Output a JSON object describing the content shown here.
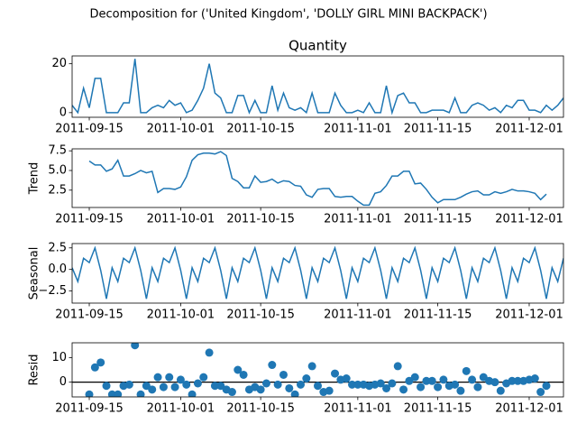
{
  "title": "Decomposition for ('United Kingdom', 'DOLLY GIRL MINI BACKPACK')",
  "chart_data": [
    {
      "type": "line",
      "title": "Quantity",
      "color": "#1f77b4",
      "x": [
        "2011-09-12",
        "2011-09-13",
        "2011-09-14",
        "2011-09-15",
        "2011-09-16",
        "2011-09-17",
        "2011-09-18",
        "2011-09-19",
        "2011-09-20",
        "2011-09-21",
        "2011-09-22",
        "2011-09-23",
        "2011-09-24",
        "2011-09-25",
        "2011-09-26",
        "2011-09-27",
        "2011-09-28",
        "2011-09-29",
        "2011-09-30",
        "2011-10-01",
        "2011-10-02",
        "2011-10-03",
        "2011-10-04",
        "2011-10-05",
        "2011-10-06",
        "2011-10-07",
        "2011-10-08",
        "2011-10-09",
        "2011-10-10",
        "2011-10-11",
        "2011-10-12",
        "2011-10-13",
        "2011-10-14",
        "2011-10-15",
        "2011-10-16",
        "2011-10-17",
        "2011-10-18",
        "2011-10-19",
        "2011-10-20",
        "2011-10-21",
        "2011-10-22",
        "2011-10-23",
        "2011-10-24",
        "2011-10-25",
        "2011-10-26",
        "2011-10-27",
        "2011-10-28",
        "2011-10-29",
        "2011-10-30",
        "2011-10-31",
        "2011-11-01",
        "2011-11-02",
        "2011-11-03",
        "2011-11-04",
        "2011-11-05",
        "2011-11-06",
        "2011-11-07",
        "2011-11-08",
        "2011-11-09",
        "2011-11-10",
        "2011-11-11",
        "2011-11-12",
        "2011-11-13",
        "2011-11-14",
        "2011-11-15",
        "2011-11-16",
        "2011-11-17",
        "2011-11-18",
        "2011-11-19",
        "2011-11-20",
        "2011-11-21",
        "2011-11-22",
        "2011-11-23",
        "2011-11-24",
        "2011-11-25",
        "2011-11-26",
        "2011-11-27",
        "2011-11-28",
        "2011-11-29",
        "2011-11-30",
        "2011-12-01",
        "2011-12-02",
        "2011-12-03",
        "2011-12-04",
        "2011-12-05",
        "2011-12-06",
        "2011-12-07"
      ],
      "values": [
        3,
        0,
        10,
        2,
        14,
        14,
        0,
        0,
        0,
        4,
        4,
        22,
        0,
        0,
        2,
        3,
        2,
        5,
        3,
        4,
        0,
        1,
        5,
        10,
        20,
        8,
        6,
        0,
        0,
        7,
        7,
        0,
        5,
        0,
        0,
        11,
        1,
        8,
        2,
        1,
        2,
        0,
        8,
        0,
        0,
        0,
        8,
        3,
        0,
        0,
        1,
        0,
        4,
        0,
        0,
        11,
        0,
        7,
        8,
        4,
        4,
        0,
        0,
        1,
        1,
        1,
        0,
        6,
        0,
        0,
        3,
        4,
        3,
        1,
        2,
        0,
        3,
        2,
        5,
        5,
        1,
        1,
        0,
        3,
        1,
        3,
        6
      ],
      "xlim": [
        "2011-09-12",
        "2011-12-07"
      ],
      "xticks": [
        "2011-09-15",
        "2011-10-01",
        "2011-10-15",
        "2011-11-01",
        "2011-11-15",
        "2011-12-01"
      ],
      "ylim": [
        -1.9,
        23.2
      ],
      "yticks": [
        0,
        20
      ]
    },
    {
      "type": "line",
      "ylabel": "Trend",
      "color": "#1f77b4",
      "x": [
        "2011-09-12",
        "2011-09-13",
        "2011-09-14",
        "2011-09-15",
        "2011-09-16",
        "2011-09-17",
        "2011-09-18",
        "2011-09-19",
        "2011-09-20",
        "2011-09-21",
        "2011-09-22",
        "2011-09-23",
        "2011-09-24",
        "2011-09-25",
        "2011-09-26",
        "2011-09-27",
        "2011-09-28",
        "2011-09-29",
        "2011-09-30",
        "2011-10-01",
        "2011-10-02",
        "2011-10-03",
        "2011-10-04",
        "2011-10-05",
        "2011-10-06",
        "2011-10-07",
        "2011-10-08",
        "2011-10-09",
        "2011-10-10",
        "2011-10-11",
        "2011-10-12",
        "2011-10-13",
        "2011-10-14",
        "2011-10-15",
        "2011-10-16",
        "2011-10-17",
        "2011-10-18",
        "2011-10-19",
        "2011-10-20",
        "2011-10-21",
        "2011-10-22",
        "2011-10-23",
        "2011-10-24",
        "2011-10-25",
        "2011-10-26",
        "2011-10-27",
        "2011-10-28",
        "2011-10-29",
        "2011-10-30",
        "2011-10-31",
        "2011-11-01",
        "2011-11-02",
        "2011-11-03",
        "2011-11-04",
        "2011-11-05",
        "2011-11-06",
        "2011-11-07",
        "2011-11-08",
        "2011-11-09",
        "2011-11-10",
        "2011-11-11",
        "2011-11-12",
        "2011-11-13",
        "2011-11-14",
        "2011-11-15",
        "2011-11-16",
        "2011-11-17",
        "2011-11-18",
        "2011-11-19",
        "2011-11-20",
        "2011-11-21",
        "2011-11-22",
        "2011-11-23",
        "2011-11-24",
        "2011-11-25",
        "2011-11-26",
        "2011-11-27",
        "2011-11-28",
        "2011-11-29",
        "2011-11-30",
        "2011-12-01",
        "2011-12-02",
        "2011-12-03",
        "2011-12-04",
        "2011-12-05",
        "2011-12-06",
        "2011-12-07"
      ],
      "values": [
        null,
        null,
        null,
        6.2,
        5.7,
        5.7,
        4.9,
        5.2,
        6.3,
        4.3,
        4.3,
        4.6,
        5.0,
        4.7,
        4.9,
        2.2,
        2.7,
        2.7,
        2.6,
        2.9,
        4.2,
        6.3,
        7.0,
        7.2,
        7.2,
        7.1,
        7.4,
        6.9,
        4.0,
        3.6,
        2.8,
        2.8,
        4.3,
        3.5,
        3.6,
        3.9,
        3.4,
        3.7,
        3.6,
        3.1,
        3.0,
        1.9,
        1.6,
        2.6,
        2.7,
        2.7,
        1.7,
        1.6,
        1.7,
        1.7,
        1.1,
        0.6,
        0.6,
        2.1,
        2.3,
        3.1,
        4.3,
        4.3,
        4.9,
        4.9,
        3.3,
        3.4,
        2.6,
        1.6,
        0.9,
        1.3,
        1.3,
        1.3,
        1.6,
        2.0,
        2.3,
        2.4,
        1.9,
        1.9,
        2.3,
        2.1,
        2.3,
        2.6,
        2.4,
        2.4,
        2.3,
        2.1,
        1.3,
        2.0,
        null,
        null,
        null
      ],
      "xlim": [
        "2011-09-12",
        "2011-12-07"
      ],
      "xticks": [
        "2011-09-15",
        "2011-10-01",
        "2011-10-15",
        "2011-11-01",
        "2011-11-15",
        "2011-12-01"
      ],
      "ylim": [
        0.3,
        7.75
      ],
      "yticks": [
        {
          "value": 2.5,
          "label": "2.5"
        },
        {
          "value": 5,
          "label": "5.0"
        },
        {
          "value": 7.5,
          "label": "7.5"
        }
      ]
    },
    {
      "type": "line",
      "ylabel": "Seasonal",
      "color": "#1f77b4",
      "x": [
        "2011-09-12",
        "2011-09-13",
        "2011-09-14",
        "2011-09-15",
        "2011-09-16",
        "2011-09-17",
        "2011-09-18",
        "2011-09-19",
        "2011-09-20",
        "2011-09-21",
        "2011-09-22",
        "2011-09-23",
        "2011-09-24",
        "2011-09-25",
        "2011-09-26",
        "2011-09-27",
        "2011-09-28",
        "2011-09-29",
        "2011-09-30",
        "2011-10-01",
        "2011-10-02",
        "2011-10-03",
        "2011-10-04",
        "2011-10-05",
        "2011-10-06",
        "2011-10-07",
        "2011-10-08",
        "2011-10-09",
        "2011-10-10",
        "2011-10-11",
        "2011-10-12",
        "2011-10-13",
        "2011-10-14",
        "2011-10-15",
        "2011-10-16",
        "2011-10-17",
        "2011-10-18",
        "2011-10-19",
        "2011-10-20",
        "2011-10-21",
        "2011-10-22",
        "2011-10-23",
        "2011-10-24",
        "2011-10-25",
        "2011-10-26",
        "2011-10-27",
        "2011-10-28",
        "2011-10-29",
        "2011-10-30",
        "2011-10-31",
        "2011-11-01",
        "2011-11-02",
        "2011-11-03",
        "2011-11-04",
        "2011-11-05",
        "2011-11-06",
        "2011-11-07",
        "2011-11-08",
        "2011-11-09",
        "2011-11-10",
        "2011-11-11",
        "2011-11-12",
        "2011-11-13",
        "2011-11-14",
        "2011-11-15",
        "2011-11-16",
        "2011-11-17",
        "2011-11-18",
        "2011-11-19",
        "2011-11-20",
        "2011-11-21",
        "2011-11-22",
        "2011-11-23",
        "2011-11-24",
        "2011-11-25",
        "2011-11-26",
        "2011-11-27",
        "2011-11-28",
        "2011-11-29",
        "2011-11-30",
        "2011-12-01",
        "2011-12-02",
        "2011-12-03",
        "2011-12-04",
        "2011-12-05",
        "2011-12-06",
        "2011-12-07"
      ],
      "values": [
        0.2,
        -1.4,
        1.3,
        0.8,
        2.5,
        -0.1,
        -3.4,
        0.2,
        -1.4,
        1.3,
        0.8,
        2.5,
        -0.1,
        -3.4,
        0.2,
        -1.4,
        1.3,
        0.8,
        2.5,
        -0.1,
        -3.4,
        0.2,
        -1.4,
        1.3,
        0.8,
        2.5,
        -0.1,
        -3.4,
        0.2,
        -1.4,
        1.3,
        0.8,
        2.5,
        -0.1,
        -3.4,
        0.2,
        -1.4,
        1.3,
        0.8,
        2.5,
        -0.1,
        -3.4,
        0.2,
        -1.4,
        1.3,
        0.8,
        2.5,
        -0.1,
        -3.4,
        0.2,
        -1.4,
        1.3,
        0.8,
        2.5,
        -0.1,
        -3.4,
        0.2,
        -1.4,
        1.3,
        0.8,
        2.5,
        -0.1,
        -3.4,
        0.2,
        -1.4,
        1.3,
        0.8,
        2.5,
        -0.1,
        -3.4,
        0.2,
        -1.4,
        1.3,
        0.8,
        2.5,
        -0.1,
        -3.4,
        0.2,
        -1.4,
        1.3,
        0.8,
        2.5,
        -0.1,
        -3.4,
        0.2,
        -1.4,
        1.3
      ],
      "xlim": [
        "2011-09-12",
        "2011-12-07"
      ],
      "xticks": [
        "2011-09-15",
        "2011-10-01",
        "2011-10-15",
        "2011-11-01",
        "2011-11-15",
        "2011-12-01"
      ],
      "ylim": [
        -3.9,
        3.0
      ],
      "yticks": [
        {
          "value": -2.5,
          "label": "−2.5"
        },
        {
          "value": 0,
          "label": "0.0"
        },
        {
          "value": 2.5,
          "label": "2.5"
        }
      ]
    },
    {
      "type": "scatter",
      "ylabel": "Resid",
      "color": "#1f77b4",
      "x": [
        "2011-09-12",
        "2011-09-13",
        "2011-09-14",
        "2011-09-15",
        "2011-09-16",
        "2011-09-17",
        "2011-09-18",
        "2011-09-19",
        "2011-09-20",
        "2011-09-21",
        "2011-09-22",
        "2011-09-23",
        "2011-09-24",
        "2011-09-25",
        "2011-09-26",
        "2011-09-27",
        "2011-09-28",
        "2011-09-29",
        "2011-09-30",
        "2011-10-01",
        "2011-10-02",
        "2011-10-03",
        "2011-10-04",
        "2011-10-05",
        "2011-10-06",
        "2011-10-07",
        "2011-10-08",
        "2011-10-09",
        "2011-10-10",
        "2011-10-11",
        "2011-10-12",
        "2011-10-13",
        "2011-10-14",
        "2011-10-15",
        "2011-10-16",
        "2011-10-17",
        "2011-10-18",
        "2011-10-19",
        "2011-10-20",
        "2011-10-21",
        "2011-10-22",
        "2011-10-23",
        "2011-10-24",
        "2011-10-25",
        "2011-10-26",
        "2011-10-27",
        "2011-10-28",
        "2011-10-29",
        "2011-10-30",
        "2011-10-31",
        "2011-11-01",
        "2011-11-02",
        "2011-11-03",
        "2011-11-04",
        "2011-11-05",
        "2011-11-06",
        "2011-11-07",
        "2011-11-08",
        "2011-11-09",
        "2011-11-10",
        "2011-11-11",
        "2011-11-12",
        "2011-11-13",
        "2011-11-14",
        "2011-11-15",
        "2011-11-16",
        "2011-11-17",
        "2011-11-18",
        "2011-11-19",
        "2011-11-20",
        "2011-11-21",
        "2011-11-22",
        "2011-11-23",
        "2011-11-24",
        "2011-11-25",
        "2011-11-26",
        "2011-11-27",
        "2011-11-28",
        "2011-11-29",
        "2011-11-30",
        "2011-12-01",
        "2011-12-02",
        "2011-12-03",
        "2011-12-04",
        "2011-12-05",
        "2011-12-06",
        "2011-12-07"
      ],
      "values": [
        null,
        null,
        null,
        -5,
        6,
        8,
        -1.5,
        -5,
        -5,
        -1.5,
        -1,
        15,
        -5,
        -1.5,
        -3,
        2,
        -2,
        2,
        -2,
        1,
        -1,
        -5,
        -0.5,
        2,
        12,
        -1.5,
        -1.5,
        -3,
        -4,
        5,
        3,
        -3,
        -2,
        -3,
        -0.5,
        7,
        -1,
        3,
        -2.5,
        -5,
        -1,
        1.5,
        6.5,
        -1.5,
        -4,
        -3.5,
        3.5,
        1,
        1.5,
        -1,
        -1,
        -1,
        -1.5,
        -1,
        -0.5,
        -2.5,
        -0.5,
        6.5,
        -3,
        0.5,
        2,
        -2,
        0.5,
        0.5,
        -2,
        1,
        -1.5,
        -1,
        -3.5,
        4.5,
        1,
        -2,
        2,
        0.5,
        0,
        -3.5,
        -0.5,
        0.5,
        0.5,
        0.5,
        1,
        1.5,
        -4,
        -1.5,
        null,
        null,
        null
      ],
      "xlim": [
        "2011-09-12",
        "2011-12-07"
      ],
      "xticks": [
        "2011-09-15",
        "2011-10-01",
        "2011-10-15",
        "2011-11-01",
        "2011-11-15",
        "2011-12-01"
      ],
      "ylim": [
        -6,
        16
      ],
      "yticks": [
        0,
        10
      ]
    }
  ]
}
